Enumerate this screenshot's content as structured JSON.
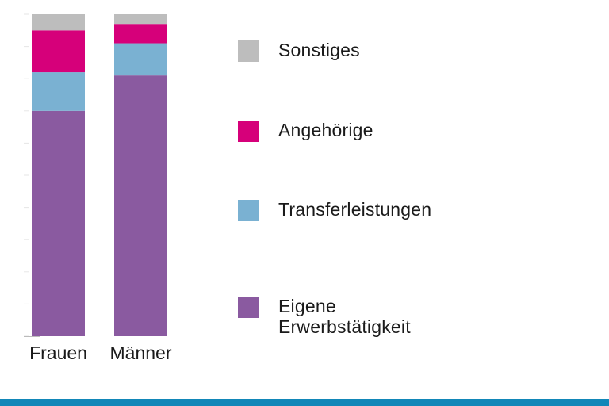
{
  "chart_data": {
    "type": "bar",
    "stacked": true,
    "categories": [
      "Frauen",
      "Männer"
    ],
    "ylim": [
      0,
      100
    ],
    "series": [
      {
        "name": "Eigene Erwerbstätigkeit",
        "color": "#8a5aa0",
        "values": [
          70,
          81
        ]
      },
      {
        "name": "Transferleistungen",
        "color": "#7ab1d2",
        "values": [
          12,
          10
        ]
      },
      {
        "name": "Angehörige",
        "color": "#d6007a",
        "values": [
          13,
          6
        ]
      },
      {
        "name": "Sonstiges",
        "color": "#bdbdbd",
        "values": [
          5,
          3
        ]
      }
    ],
    "legend_order": [
      3,
      2,
      1,
      0
    ],
    "legend_placement": "right",
    "grid": false
  },
  "legend": [
    {
      "label": "Sonstiges",
      "color": "#bdbdbd"
    },
    {
      "label": "Angehörige",
      "color": "#d6007a"
    },
    {
      "label": "Transferleistungen",
      "color": "#7ab1d2"
    },
    {
      "label": "Eigene\nErwerbstätigkeit",
      "color": "#8a5aa0"
    }
  ],
  "footer": {
    "color": "#1287b8"
  }
}
